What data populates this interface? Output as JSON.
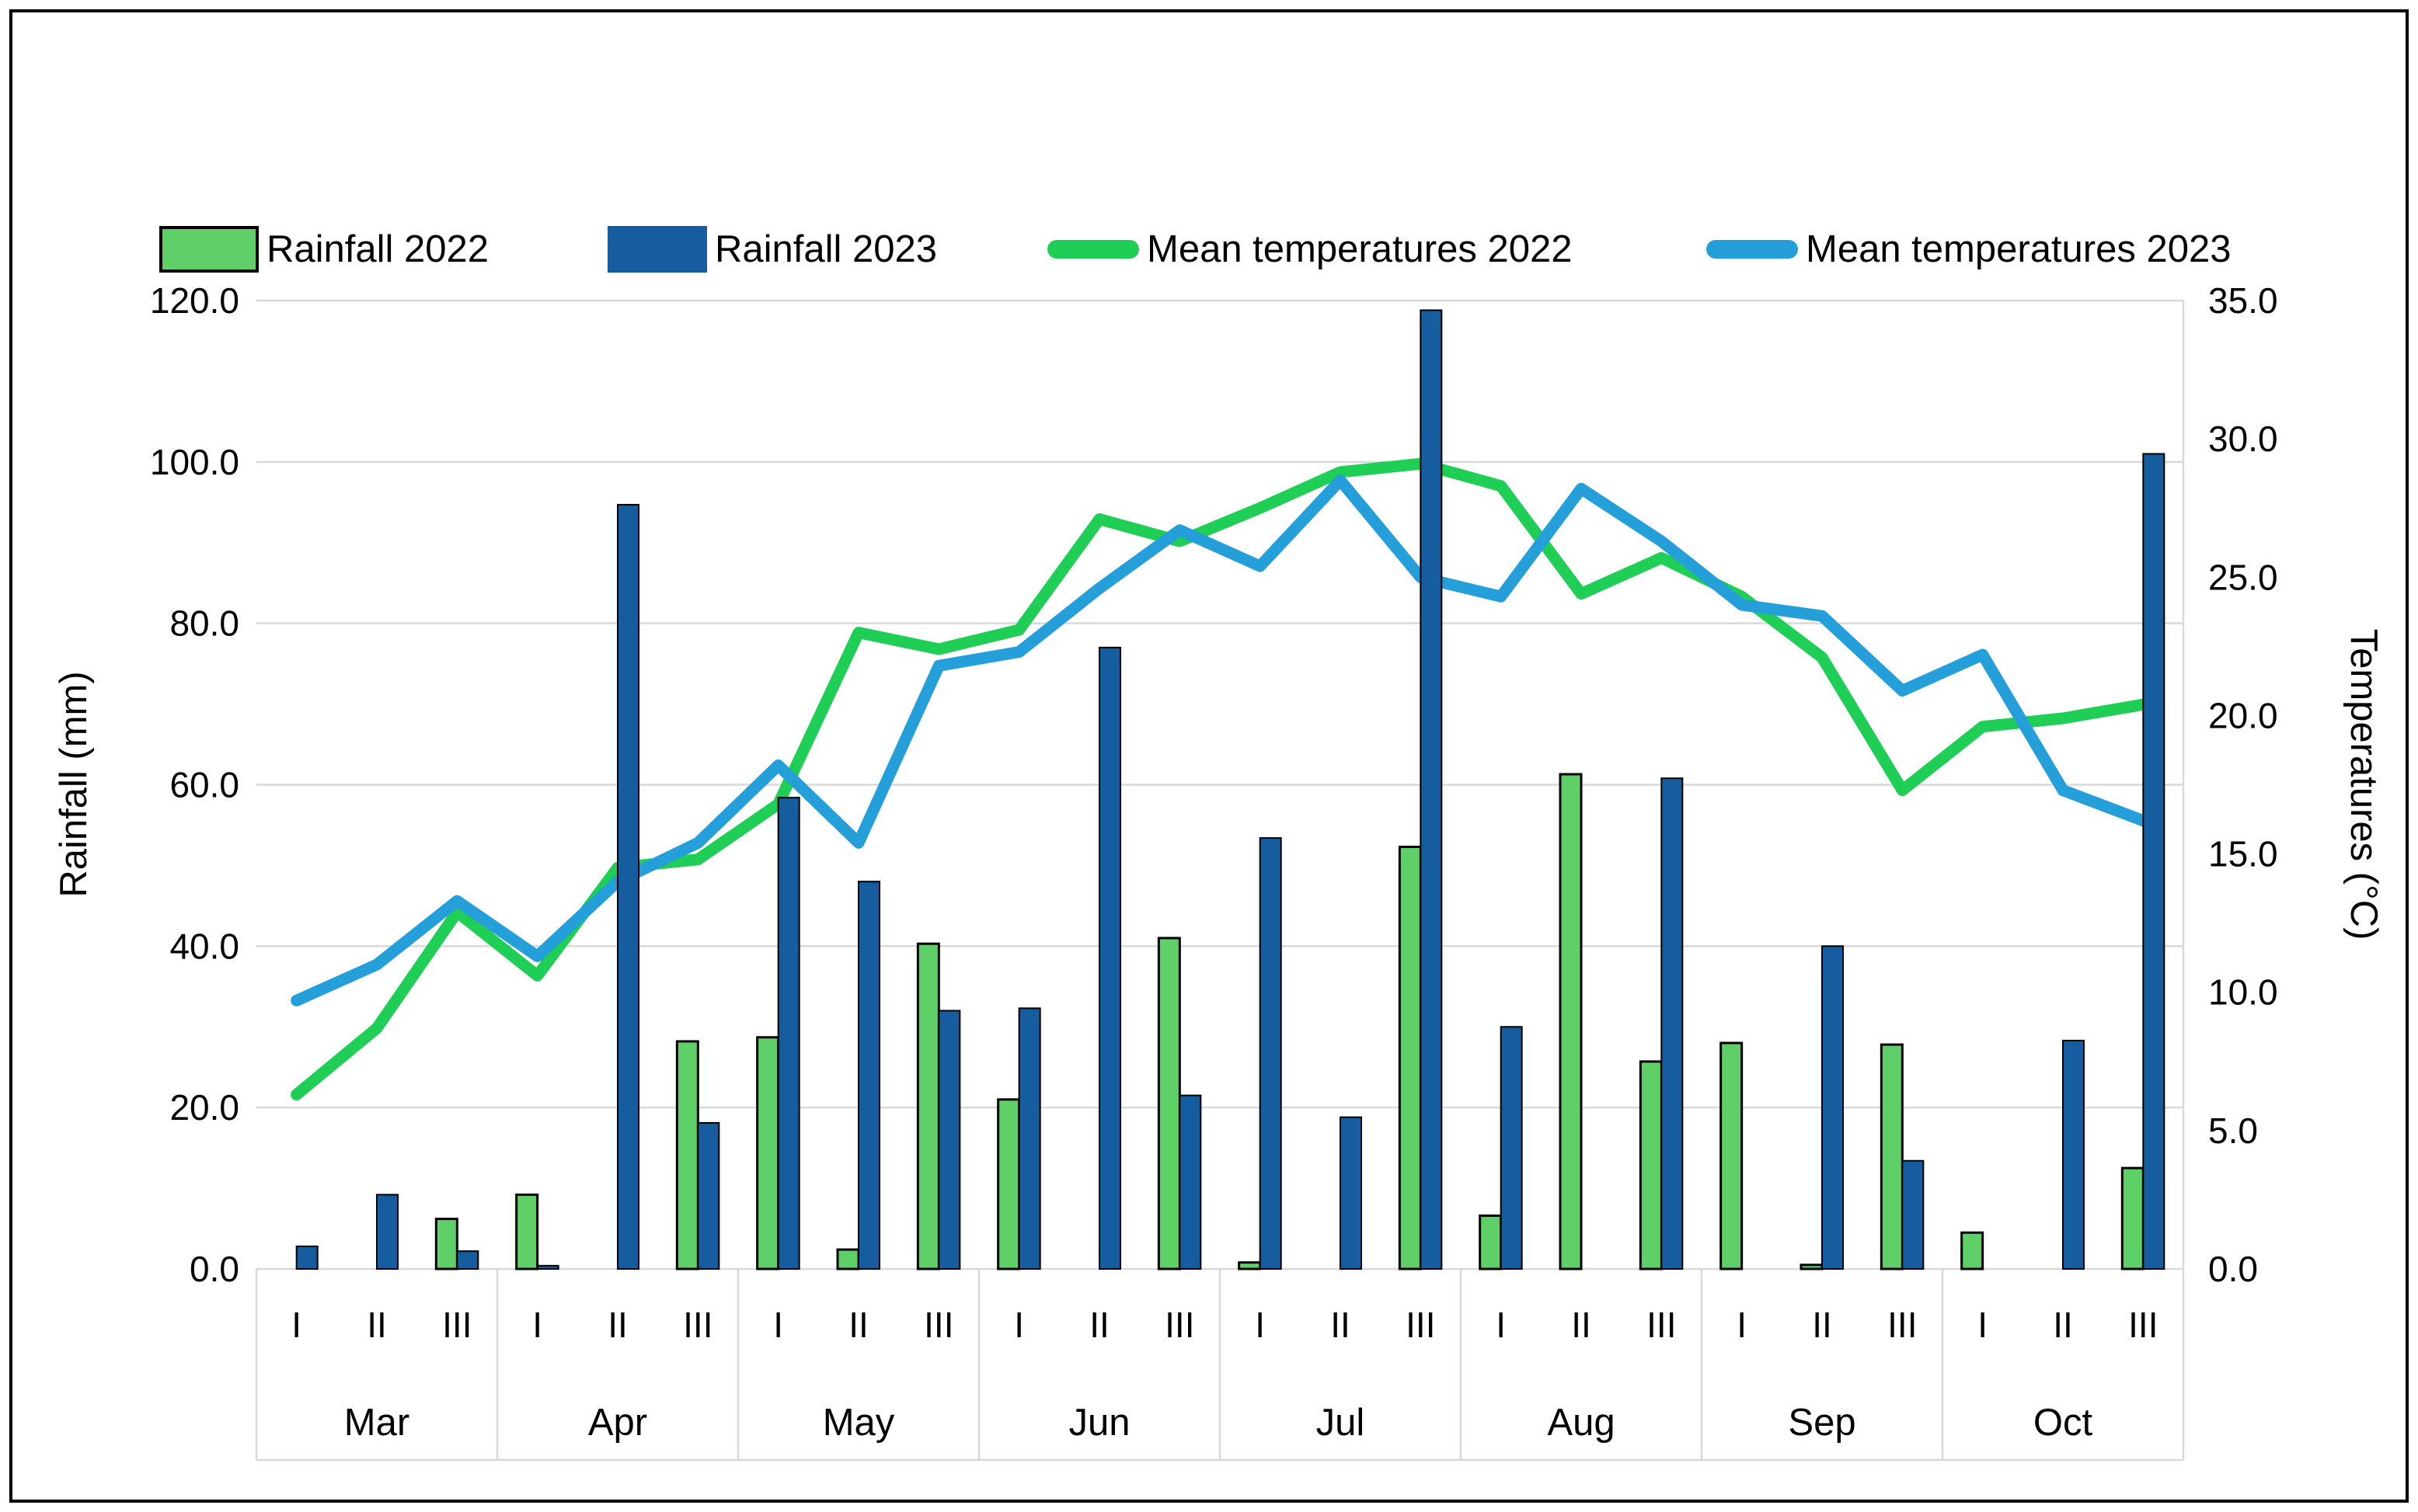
{
  "chart_data": {
    "type": "bar+line combo",
    "months": [
      "Mar",
      "Apr",
      "May",
      "Jun",
      "Jul",
      "Aug",
      "Sep",
      "Oct"
    ],
    "decades": [
      "I",
      "II",
      "III"
    ],
    "left_axis": {
      "title": "Rainfall (mm)",
      "min": 0,
      "max": 120,
      "step": 20
    },
    "right_axis": {
      "title": "Temperatures (°C)",
      "min": 0,
      "max": 35,
      "step": 5
    },
    "grid": true,
    "legend_position": "top",
    "colors": {
      "grid": "#d9d9d9",
      "text": "#000000",
      "bar_outline": "#000000"
    },
    "series": [
      {
        "name": "Rainfall 2022",
        "type": "bar",
        "axis": "left",
        "color": "#5fcf68",
        "values": [
          0,
          0,
          6.2,
          9.2,
          0,
          28.2,
          28.7,
          2.4,
          40.3,
          21.0,
          0,
          41.0,
          0.8,
          0,
          52.3,
          6.6,
          61.3,
          25.7,
          28.0,
          0.5,
          27.8,
          4.5,
          0,
          12.5
        ]
      },
      {
        "name": "Rainfall 2023",
        "type": "bar",
        "axis": "left",
        "color": "#155d9e",
        "values": [
          2.8,
          9.2,
          2.2,
          0.4,
          94.7,
          18.1,
          58.4,
          48.0,
          32.0,
          32.3,
          77.0,
          21.5,
          53.4,
          18.8,
          118.8,
          30.0,
          0,
          60.8,
          0,
          40.0,
          13.4,
          0,
          28.3,
          101.0
        ]
      },
      {
        "name": "Mean temperatures 2022",
        "type": "line",
        "axis": "right",
        "color": "#1fce54",
        "values": [
          6.3,
          8.7,
          12.9,
          10.6,
          14.5,
          14.8,
          16.8,
          23.0,
          22.4,
          23.1,
          27.1,
          26.3,
          27.5,
          28.8,
          29.1,
          28.3,
          24.4,
          25.7,
          24.3,
          22.1,
          17.3,
          19.6,
          19.9,
          20.4
        ]
      },
      {
        "name": "Mean temperatures 2023",
        "type": "line",
        "axis": "right",
        "color": "#249fd9",
        "values": [
          9.7,
          11.0,
          13.3,
          11.3,
          14.0,
          15.4,
          18.2,
          15.4,
          21.8,
          22.3,
          24.6,
          26.7,
          25.4,
          28.5,
          25.0,
          24.3,
          28.2,
          26.3,
          24.0,
          23.6,
          20.9,
          22.2,
          17.3,
          16.2
        ]
      }
    ]
  }
}
